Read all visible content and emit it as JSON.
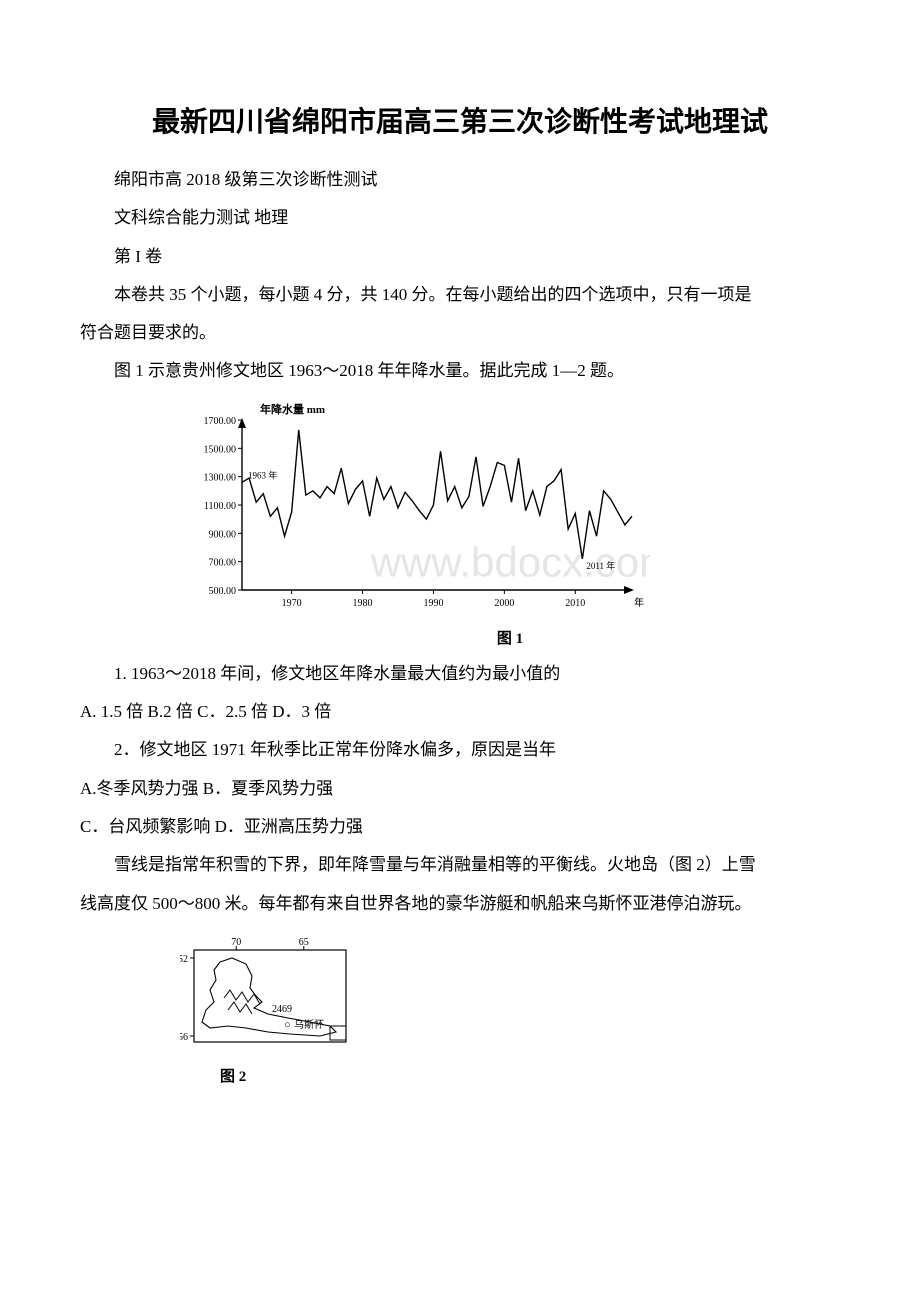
{
  "title": "最新四川省绵阳市届高三第三次诊断性考试地理试",
  "p1": "绵阳市高 2018 级第三次诊断性测试",
  "p2": "文科综合能力测试 地理",
  "p3": "第 I 卷",
  "p4": "本卷共 35 个小题，每小题 4 分，共 140 分。在每小题给出的四个选项中，只有一项是",
  "p5": "符合题目要求的。",
  "p6": "图 1 示意贵州修文地区 1963～2018 年年降水量。据此完成 1—2 题。",
  "q1": "1. 1963～2018 年间，修文地区年降水量最大值约为最小值的",
  "q1opts": " A. 1.5 倍 B.2 倍 C．2.5 倍 D．3 倍",
  "q2": "2．修文地区 1971 年秋季比正常年份降水偏多，原因是当年",
  "q2a": " A.冬季风势力强 B．夏季风势力强",
  "q2b": " C．台风频繁影响 D．亚洲高压势力强",
  "p7": "雪线是指常年积雪的下界，即年降雪量与年消融量相等的平衡线。火地岛（图 2）上雪",
  "p8": "线高度仅 500～800 米。每年都有来自世界各地的豪华游艇和帆船来乌斯怀亚港停泊游玩。",
  "chart1": {
    "type": "line",
    "ylabel": "年降水量 mm",
    "ylabel_fontsize": 11,
    "xlim": [
      1963,
      2018
    ],
    "ylim": [
      500,
      1700
    ],
    "yticks": [
      500.0,
      700.0,
      900.0,
      1100.0,
      1300.0,
      1500.0,
      1700.0
    ],
    "xticks": [
      1970,
      1980,
      1990,
      2000,
      2010
    ],
    "xtick_label_suffix": "年",
    "line_color": "#000000",
    "line_width": 1.4,
    "background_color": "#ffffff",
    "axis_color": "#000000",
    "tick_fontsize": 10,
    "annotation_start": {
      "x": 1963,
      "label": "1963 年",
      "fontsize": 9
    },
    "annotation_end": {
      "x": 2011,
      "label": "2011 年",
      "fontsize": 9
    },
    "watermark": "www.bdocx.com",
    "caption": "图 1",
    "series": [
      {
        "x": 1963,
        "y": 1260
      },
      {
        "x": 1964,
        "y": 1290
      },
      {
        "x": 1965,
        "y": 1120
      },
      {
        "x": 1966,
        "y": 1180
      },
      {
        "x": 1967,
        "y": 1020
      },
      {
        "x": 1968,
        "y": 1080
      },
      {
        "x": 1969,
        "y": 880
      },
      {
        "x": 1970,
        "y": 1050
      },
      {
        "x": 1971,
        "y": 1630
      },
      {
        "x": 1972,
        "y": 1170
      },
      {
        "x": 1973,
        "y": 1200
      },
      {
        "x": 1974,
        "y": 1150
      },
      {
        "x": 1975,
        "y": 1230
      },
      {
        "x": 1976,
        "y": 1180
      },
      {
        "x": 1977,
        "y": 1360
      },
      {
        "x": 1978,
        "y": 1110
      },
      {
        "x": 1979,
        "y": 1210
      },
      {
        "x": 1980,
        "y": 1270
      },
      {
        "x": 1981,
        "y": 1020
      },
      {
        "x": 1982,
        "y": 1290
      },
      {
        "x": 1983,
        "y": 1140
      },
      {
        "x": 1984,
        "y": 1230
      },
      {
        "x": 1985,
        "y": 1080
      },
      {
        "x": 1986,
        "y": 1190
      },
      {
        "x": 1987,
        "y": 1130
      },
      {
        "x": 1988,
        "y": 1060
      },
      {
        "x": 1989,
        "y": 1000
      },
      {
        "x": 1990,
        "y": 1100
      },
      {
        "x": 1991,
        "y": 1480
      },
      {
        "x": 1992,
        "y": 1130
      },
      {
        "x": 1993,
        "y": 1230
      },
      {
        "x": 1994,
        "y": 1080
      },
      {
        "x": 1995,
        "y": 1160
      },
      {
        "x": 1996,
        "y": 1440
      },
      {
        "x": 1997,
        "y": 1090
      },
      {
        "x": 1998,
        "y": 1230
      },
      {
        "x": 1999,
        "y": 1400
      },
      {
        "x": 2000,
        "y": 1380
      },
      {
        "x": 2001,
        "y": 1120
      },
      {
        "x": 2002,
        "y": 1430
      },
      {
        "x": 2003,
        "y": 1060
      },
      {
        "x": 2004,
        "y": 1200
      },
      {
        "x": 2005,
        "y": 1030
      },
      {
        "x": 2006,
        "y": 1230
      },
      {
        "x": 2007,
        "y": 1270
      },
      {
        "x": 2008,
        "y": 1350
      },
      {
        "x": 2009,
        "y": 930
      },
      {
        "x": 2010,
        "y": 1040
      },
      {
        "x": 2011,
        "y": 720
      },
      {
        "x": 2012,
        "y": 1060
      },
      {
        "x": 2013,
        "y": 880
      },
      {
        "x": 2014,
        "y": 1200
      },
      {
        "x": 2015,
        "y": 1140
      },
      {
        "x": 2016,
        "y": 1050
      },
      {
        "x": 2017,
        "y": 960
      },
      {
        "x": 2018,
        "y": 1020
      }
    ]
  },
  "map2": {
    "caption": "图 2",
    "border_color": "#000000",
    "border_width": 1.2,
    "background_color": "#ffffff",
    "lon_labels": [
      {
        "x": 50,
        "text": "70"
      },
      {
        "x": 130,
        "text": "65"
      }
    ],
    "lat_labels": [
      {
        "y": 22,
        "text": "52"
      },
      {
        "y": 100,
        "text": "56"
      }
    ],
    "peak_label": "2469",
    "port_label": "乌斯怀",
    "port_marker": "○",
    "label_fontsize": 10
  }
}
